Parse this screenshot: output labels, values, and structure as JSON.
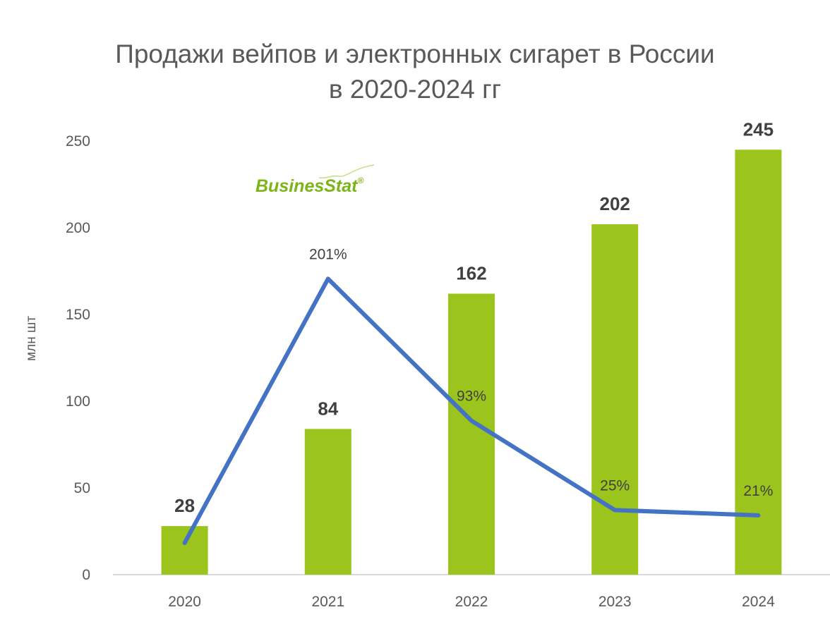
{
  "chart_data": {
    "type": "bar",
    "title": [
      "Продажи вейпов и электронных сигарет в России",
      "в 2020-2024 гг"
    ],
    "ylabel": "млн шт",
    "xlabel": "",
    "ylim": [
      0,
      250
    ],
    "yticks": [
      0,
      50,
      100,
      150,
      200,
      250
    ],
    "categories": [
      "2020",
      "2021",
      "2022",
      "2023",
      "2024"
    ],
    "series": [
      {
        "type": "bar",
        "values": [
          28,
          84,
          162,
          202,
          245
        ],
        "labels": [
          "28",
          "84",
          "162",
          "202",
          "245"
        ],
        "color": "#9bc41c"
      },
      {
        "type": "line",
        "values": [
          null,
          201,
          93,
          25,
          21
        ],
        "labels": [
          "",
          "201%",
          "93%",
          "25%",
          "21%"
        ],
        "color": "#4472c4"
      }
    ],
    "grid": false,
    "legend": "none"
  },
  "logo": {
    "text": "BusinesStat",
    "mark": "®",
    "color": "#7cb518"
  }
}
